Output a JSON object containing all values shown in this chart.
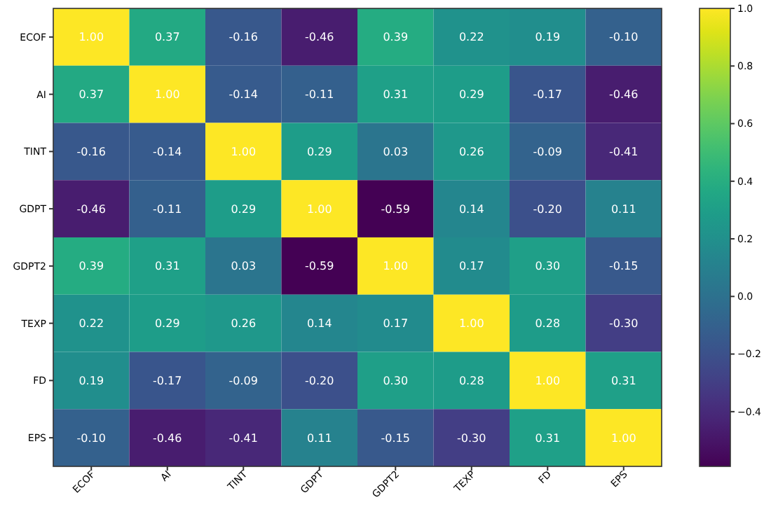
{
  "chart_data": {
    "type": "heatmap",
    "categories": [
      "ECOF",
      "AI",
      "TINT",
      "GDPT",
      "GDPT2",
      "TEXP",
      "FD",
      "EPS"
    ],
    "y_categories": [
      "ECOF",
      "AI",
      "TINT",
      "GDPT",
      "GDPT2",
      "TEXP",
      "FD",
      "EPS"
    ],
    "cells": [
      [
        1.0,
        0.37,
        -0.16,
        -0.46,
        0.39,
        0.22,
        0.19,
        -0.1
      ],
      [
        0.37,
        1.0,
        -0.14,
        -0.11,
        0.31,
        0.29,
        -0.17,
        -0.46
      ],
      [
        -0.16,
        -0.14,
        1.0,
        0.29,
        0.03,
        0.26,
        -0.09,
        -0.41
      ],
      [
        -0.46,
        -0.11,
        0.29,
        1.0,
        -0.59,
        0.14,
        -0.2,
        0.11
      ],
      [
        0.39,
        0.31,
        0.03,
        -0.59,
        1.0,
        0.17,
        0.3,
        -0.15
      ],
      [
        0.22,
        0.29,
        0.26,
        0.14,
        0.17,
        1.0,
        0.28,
        -0.3
      ],
      [
        0.19,
        -0.17,
        -0.09,
        -0.2,
        0.3,
        0.28,
        1.0,
        0.31
      ],
      [
        -0.1,
        -0.46,
        -0.41,
        0.11,
        -0.15,
        -0.3,
        0.31,
        1.0
      ]
    ],
    "cell_labels": [
      [
        "1.00",
        "0.37",
        "-0.16",
        "-0.46",
        "0.39",
        "0.22",
        "0.19",
        "-0.10"
      ],
      [
        "0.37",
        "1.00",
        "-0.14",
        "-0.11",
        "0.31",
        "0.29",
        "-0.17",
        "-0.46"
      ],
      [
        "-0.16",
        "-0.14",
        "1.00",
        "0.29",
        "0.03",
        "0.26",
        "-0.09",
        "-0.41"
      ],
      [
        "-0.46",
        "-0.11",
        "0.29",
        "1.00",
        "-0.59",
        "0.14",
        "-0.20",
        "0.11"
      ],
      [
        "0.39",
        "0.31",
        "0.03",
        "-0.59",
        "1.00",
        "0.17",
        "0.30",
        "-0.15"
      ],
      [
        "0.22",
        "0.29",
        "0.26",
        "0.14",
        "0.17",
        "1.00",
        "0.28",
        "-0.30"
      ],
      [
        "0.19",
        "-0.17",
        "-0.09",
        "-0.20",
        "0.30",
        "0.28",
        "1.00",
        "0.31"
      ],
      [
        "-0.10",
        "-0.46",
        "-0.41",
        "0.11",
        "-0.15",
        "-0.30",
        "0.31",
        "1.00"
      ]
    ],
    "clim": [
      -0.59,
      1.0
    ],
    "cticks": [
      {
        "value": -0.4,
        "label": "−0.4"
      },
      {
        "value": -0.2,
        "label": "−0.2"
      },
      {
        "value": 0,
        "label": "0.0"
      },
      {
        "value": 0.2,
        "label": "0.2"
      },
      {
        "value": 0.4,
        "label": "0.4"
      },
      {
        "value": 0.6,
        "label": "0.6"
      },
      {
        "value": 0.8,
        "label": "0.8"
      },
      {
        "value": 1.0,
        "label": "1.0"
      }
    ]
  }
}
